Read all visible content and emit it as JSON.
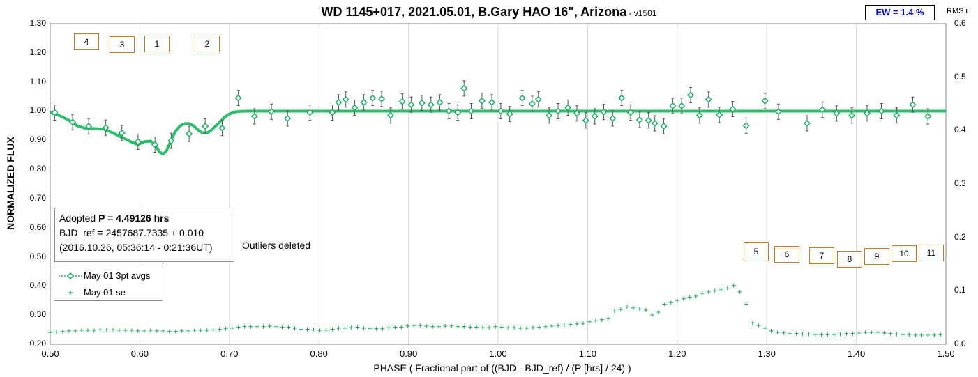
{
  "title": "WD 1145+017, 2021.05.01, B.Gary HAO 16\", Arizona",
  "title_suffix": " - ",
  "version": "v1501",
  "ew_label": "EW = 1.4 %",
  "rms_label": "RMS i",
  "info": {
    "adopted_prefix": "Adopted ",
    "adopted_value": "P = 4.49126 hrs",
    "bjd_ref": "BJD_ref = 2457687.7335 + 0.010",
    "bjd_date": "(2016.10.26, 05:36:14 - 0:21:36UT)"
  },
  "outliers_note": "Outliers deleted",
  "dip_labels": [
    "4",
    "3",
    "1",
    "2",
    "5",
    "6",
    "7",
    "8",
    "9",
    "10",
    "11"
  ],
  "colors": {
    "series": "#22aa66",
    "model": "#2ebd6b",
    "dip_box": "#c07a30",
    "ew_text": "#0000cc"
  },
  "chart_data": {
    "type": "scatter",
    "title": "WD 1145+017, 2021.05.01, B.Gary HAO 16\", Arizona",
    "xlabel": "PHASE ( Fractional part of ((BJD - BJD_ref) / (P [hrs] / 24) )",
    "ylabel": "NORMALIZED FLUX",
    "y2label": "RMS i",
    "xlim": [
      0.5,
      1.5
    ],
    "ylim": [
      0.2,
      1.3
    ],
    "y2lim": [
      0.0,
      0.6
    ],
    "x_ticks": [
      "0.50",
      "0.60",
      "0.70",
      "0.80",
      "0.90",
      "1.00",
      "1.10",
      "1.20",
      "1.30",
      "1.40",
      "1.50"
    ],
    "y_ticks": [
      "0.20",
      "0.30",
      "0.40",
      "0.50",
      "0.60",
      "0.70",
      "0.80",
      "0.90",
      "1.00",
      "1.10",
      "1.20",
      "1.30"
    ],
    "y2_ticks": [
      "0.0",
      "0.1",
      "0.2",
      "0.3",
      "0.4",
      "0.5",
      "0.6"
    ],
    "grid": "vertical",
    "legend_placement": "lower-left",
    "series": [
      {
        "name": "May 01 3pt avgs",
        "marker": "diamond",
        "x": [
          0.505,
          0.525,
          0.543,
          0.562,
          0.58,
          0.598,
          0.617,
          0.635,
          0.655,
          0.673,
          0.692,
          0.71,
          0.728,
          0.747,
          0.765,
          0.79,
          0.815,
          0.822,
          0.83,
          0.84,
          0.85,
          0.86,
          0.87,
          0.88,
          0.893,
          0.903,
          0.915,
          0.925,
          0.935,
          0.945,
          0.955,
          0.962,
          0.97,
          0.982,
          0.993,
          1.003,
          1.013,
          1.027,
          1.038,
          1.045,
          1.057,
          1.067,
          1.078,
          1.088,
          1.098,
          1.108,
          1.118,
          1.128,
          1.138,
          1.148,
          1.158,
          1.168,
          1.175,
          1.185,
          1.195,
          1.205,
          1.215,
          1.225,
          1.235,
          1.247,
          1.262,
          1.277,
          1.298,
          1.313,
          1.345,
          1.362,
          1.378,
          1.395,
          1.412,
          1.428,
          1.445,
          1.463,
          1.48
        ],
        "y": [
          0.995,
          0.962,
          0.948,
          0.943,
          0.925,
          0.895,
          0.885,
          0.898,
          0.922,
          0.948,
          0.942,
          1.045,
          0.982,
          0.998,
          0.975,
          0.995,
          0.995,
          1.03,
          1.04,
          1.012,
          1.03,
          1.045,
          1.042,
          0.985,
          1.033,
          1.022,
          1.028,
          1.022,
          1.03,
          1.0,
          0.995,
          1.078,
          1.0,
          1.035,
          1.03,
          1.0,
          0.99,
          1.045,
          1.025,
          1.04,
          0.985,
          1.0,
          1.012,
          0.992,
          0.968,
          0.982,
          0.997,
          0.975,
          1.045,
          0.995,
          0.97,
          0.968,
          0.958,
          0.948,
          1.018,
          1.018,
          1.055,
          0.985,
          1.04,
          0.987,
          1.007,
          0.95,
          1.035,
          0.998,
          0.958,
          1.005,
          0.992,
          0.985,
          0.992,
          1.0,
          0.985,
          1.022,
          0.982
        ]
      },
      {
        "name": "May 01 se",
        "marker": "plus",
        "axis": "y2",
        "x": [
          0.5,
          0.507,
          0.514,
          0.521,
          0.528,
          0.535,
          0.542,
          0.549,
          0.556,
          0.563,
          0.57,
          0.577,
          0.584,
          0.591,
          0.598,
          0.605,
          0.612,
          0.619,
          0.626,
          0.633,
          0.64,
          0.647,
          0.654,
          0.661,
          0.668,
          0.675,
          0.682,
          0.689,
          0.696,
          0.703,
          0.71,
          0.717,
          0.724,
          0.731,
          0.738,
          0.745,
          0.752,
          0.759,
          0.766,
          0.773,
          0.78,
          0.787,
          0.794,
          0.801,
          0.808,
          0.815,
          0.822,
          0.829,
          0.836,
          0.843,
          0.85,
          0.857,
          0.864,
          0.871,
          0.878,
          0.885,
          0.892,
          0.899,
          0.906,
          0.913,
          0.92,
          0.927,
          0.934,
          0.941,
          0.948,
          0.955,
          0.962,
          0.969,
          0.976,
          0.983,
          0.99,
          0.997,
          1.004,
          1.011,
          1.018,
          1.025,
          1.032,
          1.039,
          1.046,
          1.053,
          1.06,
          1.067,
          1.074,
          1.081,
          1.088,
          1.095,
          1.102,
          1.109,
          1.116,
          1.123,
          1.13,
          1.137,
          1.144,
          1.151,
          1.158,
          1.165,
          1.172,
          1.179,
          1.186,
          1.193,
          1.2,
          1.207,
          1.214,
          1.221,
          1.228,
          1.235,
          1.242,
          1.249,
          1.256,
          1.263,
          1.27,
          1.277,
          1.284,
          1.291,
          1.298,
          1.305,
          1.312,
          1.319,
          1.326,
          1.333,
          1.34,
          1.347,
          1.354,
          1.361,
          1.368,
          1.375,
          1.382,
          1.389,
          1.396,
          1.403,
          1.41,
          1.417,
          1.424,
          1.431,
          1.438,
          1.445,
          1.452,
          1.459,
          1.466,
          1.473,
          1.48,
          1.487,
          1.494
        ],
        "y": [
          0.022,
          0.023,
          0.024,
          0.025,
          0.025,
          0.026,
          0.026,
          0.026,
          0.027,
          0.027,
          0.027,
          0.026,
          0.026,
          0.026,
          0.025,
          0.025,
          0.026,
          0.025,
          0.025,
          0.024,
          0.024,
          0.025,
          0.025,
          0.026,
          0.026,
          0.026,
          0.027,
          0.028,
          0.029,
          0.03,
          0.032,
          0.033,
          0.033,
          0.033,
          0.033,
          0.034,
          0.033,
          0.032,
          0.032,
          0.03,
          0.028,
          0.028,
          0.027,
          0.026,
          0.026,
          0.028,
          0.03,
          0.03,
          0.031,
          0.032,
          0.03,
          0.029,
          0.029,
          0.029,
          0.031,
          0.032,
          0.032,
          0.034,
          0.035,
          0.035,
          0.034,
          0.033,
          0.033,
          0.034,
          0.034,
          0.033,
          0.033,
          0.032,
          0.032,
          0.031,
          0.031,
          0.033,
          0.032,
          0.031,
          0.031,
          0.03,
          0.03,
          0.031,
          0.032,
          0.033,
          0.034,
          0.035,
          0.036,
          0.037,
          0.038,
          0.039,
          0.042,
          0.044,
          0.046,
          0.048,
          0.062,
          0.065,
          0.07,
          0.068,
          0.066,
          0.064,
          0.055,
          0.06,
          0.075,
          0.078,
          0.082,
          0.085,
          0.088,
          0.09,
          0.095,
          0.098,
          0.1,
          0.102,
          0.105,
          0.11,
          0.098,
          0.075,
          0.04,
          0.035,
          0.03,
          0.025,
          0.022,
          0.021,
          0.02,
          0.02,
          0.019,
          0.019,
          0.018,
          0.018,
          0.018,
          0.018,
          0.019,
          0.02,
          0.02,
          0.021,
          0.022,
          0.022,
          0.022,
          0.021,
          0.02,
          0.019,
          0.018,
          0.018,
          0.017,
          0.017,
          0.017,
          0.017,
          0.018
        ]
      },
      {
        "name": "",
        "type": "line",
        "x": [
          0.5,
          0.51,
          0.52,
          0.53,
          0.54,
          0.55,
          0.56,
          0.57,
          0.58,
          0.59,
          0.598,
          0.605,
          0.612,
          0.618,
          0.622,
          0.626,
          0.63,
          0.635,
          0.64,
          0.645,
          0.65,
          0.655,
          0.66,
          0.665,
          0.67,
          0.675,
          0.68,
          0.685,
          0.69,
          0.695,
          0.7,
          0.705,
          0.71,
          0.72,
          1.5
        ],
        "y": [
          0.995,
          0.985,
          0.97,
          0.95,
          0.94,
          0.94,
          0.938,
          0.925,
          0.91,
          0.895,
          0.885,
          0.895,
          0.897,
          0.88,
          0.86,
          0.852,
          0.865,
          0.9,
          0.932,
          0.95,
          0.957,
          0.957,
          0.95,
          0.935,
          0.925,
          0.925,
          0.935,
          0.95,
          0.965,
          0.98,
          0.99,
          0.996,
          0.999,
          1.0,
          1.0
        ]
      }
    ]
  }
}
